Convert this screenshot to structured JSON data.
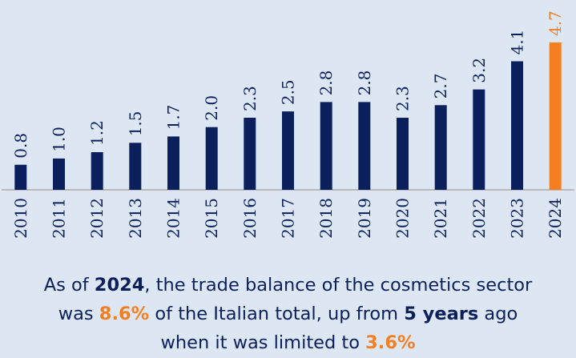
{
  "colors": {
    "background": "#dde7f4",
    "bar": "#0b1f5c",
    "highlight": "#f47e20",
    "axis": "#b9b9b9",
    "text": "#0b1f5c"
  },
  "chart_data": {
    "type": "bar",
    "categories": [
      "2010",
      "2011",
      "2012",
      "2013",
      "2014",
      "2015",
      "2016",
      "2017",
      "2018",
      "2019",
      "2020",
      "2021",
      "2022",
      "2023",
      "2024"
    ],
    "values": [
      0.8,
      1.0,
      1.2,
      1.5,
      1.7,
      2.0,
      2.3,
      2.5,
      2.8,
      2.8,
      2.3,
      2.7,
      3.2,
      4.1,
      4.7
    ],
    "value_labels": [
      "0.8",
      "1.0",
      "1.2",
      "1.5",
      "1.7",
      "2.0",
      "2.3",
      "2.5",
      "2.8",
      "2.8",
      "2.3",
      "2.7",
      "3.2",
      "4.1",
      "4.7"
    ],
    "highlight_category": "2024",
    "ylim": [
      0,
      4.7
    ],
    "grid": false,
    "legend": "none",
    "title": "",
    "xlabel": "",
    "ylabel": ""
  },
  "caption": {
    "line1": {
      "pre": "As of ",
      "bold": "2024",
      "post": ", the trade balance of the cosmetics sector"
    },
    "line2": {
      "pre": "was ",
      "pct": "8.6%",
      "mid": " of the Italian total, up  from ",
      "bold": "5 years",
      "post": " ago"
    },
    "line3": {
      "pre": "when it was limited to ",
      "pct": "3.6%"
    }
  }
}
